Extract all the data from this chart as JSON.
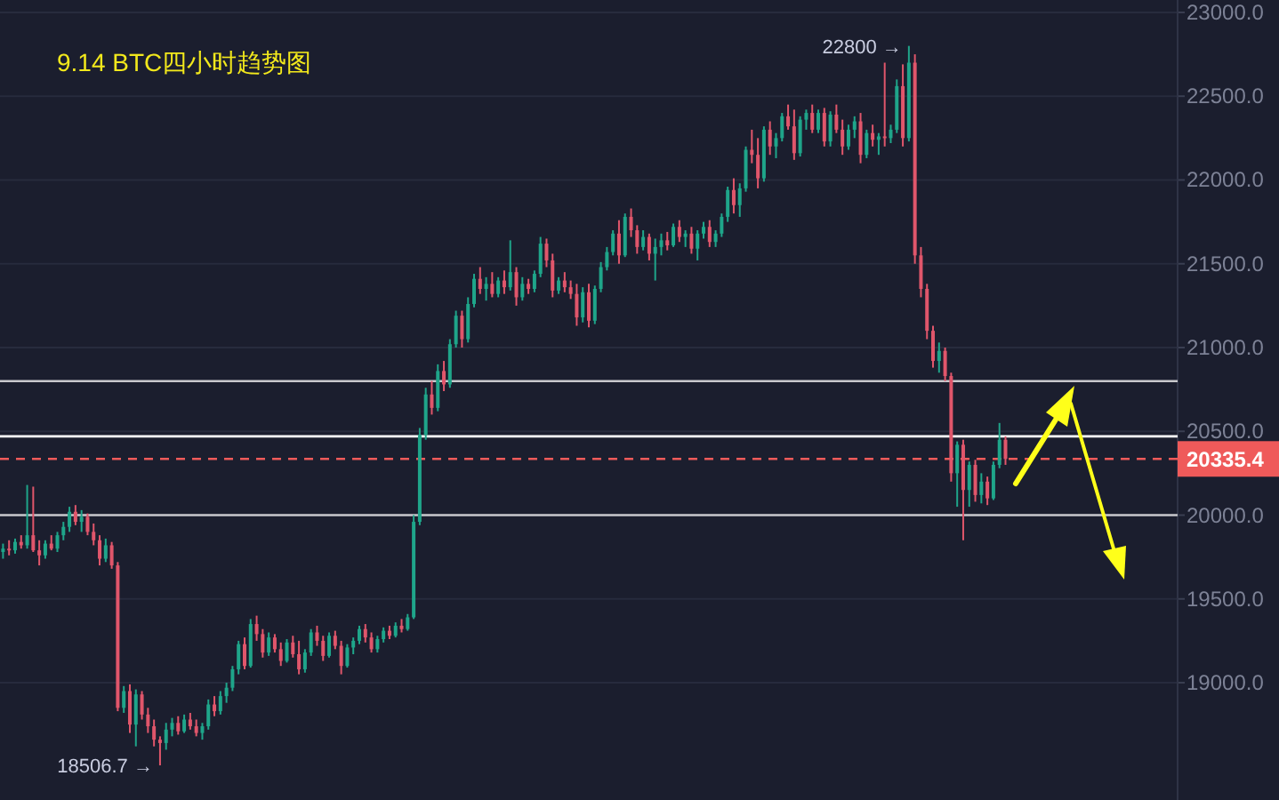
{
  "chart_data": {
    "type": "candlestick",
    "title": "9.14  BTC四小时趋势图",
    "categories": [
      null,
      null,
      null,
      null,
      null,
      null,
      null,
      null,
      null,
      null,
      null,
      null,
      null,
      null,
      null,
      null,
      null,
      null,
      null,
      null,
      null,
      null,
      null,
      null,
      null,
      null,
      null,
      null,
      null,
      null,
      null,
      null,
      null,
      null,
      null,
      null,
      null,
      null,
      null,
      null,
      null,
      null,
      null,
      null,
      null,
      null,
      null,
      null,
      null,
      null,
      null,
      null,
      null,
      null,
      null,
      null,
      null,
      null,
      null,
      null,
      null,
      null,
      null,
      null,
      null,
      null,
      null,
      null,
      null,
      null,
      null,
      null,
      null,
      null,
      null,
      null,
      null,
      null,
      null,
      null,
      null,
      null,
      null,
      null,
      null,
      null,
      null,
      null,
      null,
      null,
      null,
      null,
      null,
      null,
      null,
      null,
      null,
      null,
      null,
      null,
      null,
      null,
      null,
      null,
      null,
      null,
      null,
      null,
      null,
      null,
      null,
      null,
      null,
      null,
      null,
      null,
      null,
      null,
      null,
      null,
      null,
      null,
      null,
      null,
      null,
      null,
      null,
      null,
      null,
      null,
      null,
      null,
      null,
      null,
      null,
      null,
      null,
      null,
      null,
      null,
      null,
      null,
      null,
      null,
      null,
      null,
      null,
      null,
      null,
      null,
      null,
      null,
      null,
      null,
      null,
      null,
      null,
      null,
      null,
      null,
      null,
      null,
      null,
      null,
      null,
      null,
      null,
      null,
      null,
      null,
      null,
      null,
      null,
      null,
      null,
      null,
      null,
      null,
      null,
      null,
      null,
      null,
      null,
      null,
      null,
      null,
      null,
      null,
      null,
      null,
      null,
      null,
      null,
      null,
      null
    ],
    "ohlc": [
      [
        19780,
        19830,
        19740,
        19800
      ],
      [
        19800,
        19850,
        19760,
        19790
      ],
      [
        19790,
        19860,
        19770,
        19840
      ],
      [
        19840,
        19880,
        19800,
        19820
      ],
      [
        19820,
        20180,
        19800,
        19880
      ],
      [
        19880,
        20170,
        19780,
        19790
      ],
      [
        19790,
        19850,
        19700,
        19760
      ],
      [
        19760,
        19850,
        19740,
        19830
      ],
      [
        19830,
        19880,
        19790,
        19800
      ],
      [
        19800,
        19900,
        19780,
        19880
      ],
      [
        19880,
        19960,
        19850,
        19930
      ],
      [
        19930,
        20050,
        19900,
        20020
      ],
      [
        20020,
        20060,
        19940,
        19960
      ],
      [
        19960,
        20030,
        19900,
        19990
      ],
      [
        19990,
        20010,
        19880,
        19900
      ],
      [
        19900,
        19950,
        19820,
        19850
      ],
      [
        19850,
        19880,
        19700,
        19740
      ],
      [
        19740,
        19860,
        19720,
        19820
      ],
      [
        19820,
        19840,
        19680,
        19700
      ],
      [
        19700,
        19720,
        18830,
        18850
      ],
      [
        18850,
        18980,
        18820,
        18950
      ],
      [
        18950,
        18990,
        18700,
        18750
      ],
      [
        18750,
        18960,
        18620,
        18930
      ],
      [
        18930,
        18950,
        18780,
        18810
      ],
      [
        18810,
        18850,
        18700,
        18740
      ],
      [
        18740,
        18780,
        18620,
        18660
      ],
      [
        18660,
        18680,
        18506.7,
        18640
      ],
      [
        18640,
        18760,
        18600,
        18720
      ],
      [
        18720,
        18790,
        18680,
        18760
      ],
      [
        18760,
        18800,
        18690,
        18710
      ],
      [
        18710,
        18810,
        18700,
        18780
      ],
      [
        18780,
        18820,
        18720,
        18740
      ],
      [
        18740,
        18780,
        18680,
        18700
      ],
      [
        18700,
        18760,
        18660,
        18740
      ],
      [
        18740,
        18900,
        18720,
        18870
      ],
      [
        18870,
        18920,
        18800,
        18830
      ],
      [
        18830,
        18950,
        18810,
        18920
      ],
      [
        18920,
        19000,
        18880,
        18970
      ],
      [
        18970,
        19100,
        18950,
        19080
      ],
      [
        19080,
        19250,
        19050,
        19230
      ],
      [
        19230,
        19270,
        19080,
        19100
      ],
      [
        19100,
        19380,
        19090,
        19350
      ],
      [
        19350,
        19400,
        19250,
        19290
      ],
      [
        19290,
        19320,
        19150,
        19180
      ],
      [
        19180,
        19300,
        19160,
        19270
      ],
      [
        19270,
        19290,
        19180,
        19200
      ],
      [
        19200,
        19240,
        19100,
        19130
      ],
      [
        19130,
        19260,
        19120,
        19240
      ],
      [
        19240,
        19280,
        19150,
        19170
      ],
      [
        19170,
        19250,
        19050,
        19080
      ],
      [
        19080,
        19200,
        19060,
        19180
      ],
      [
        19180,
        19320,
        19160,
        19300
      ],
      [
        19300,
        19340,
        19220,
        19250
      ],
      [
        19250,
        19280,
        19130,
        19160
      ],
      [
        19160,
        19300,
        19150,
        19280
      ],
      [
        19280,
        19310,
        19200,
        19220
      ],
      [
        19220,
        19250,
        19050,
        19100
      ],
      [
        19100,
        19230,
        19090,
        19210
      ],
      [
        19210,
        19270,
        19170,
        19250
      ],
      [
        19250,
        19340,
        19230,
        19320
      ],
      [
        19320,
        19350,
        19240,
        19270
      ],
      [
        19270,
        19300,
        19180,
        19200
      ],
      [
        19200,
        19280,
        19180,
        19260
      ],
      [
        19260,
        19330,
        19240,
        19310
      ],
      [
        19310,
        19340,
        19260,
        19280
      ],
      [
        19280,
        19360,
        19270,
        19340
      ],
      [
        19340,
        19380,
        19300,
        19320
      ],
      [
        19320,
        19410,
        19310,
        19390
      ],
      [
        19390,
        20000,
        19380,
        19960
      ],
      [
        19960,
        20520,
        19940,
        20480
      ],
      [
        20480,
        20760,
        20450,
        20720
      ],
      [
        20720,
        20800,
        20600,
        20640
      ],
      [
        20640,
        20900,
        20620,
        20860
      ],
      [
        20860,
        20920,
        20740,
        20780
      ],
      [
        20780,
        21050,
        20760,
        21020
      ],
      [
        21020,
        21220,
        21000,
        21190
      ],
      [
        21190,
        21220,
        21000,
        21050
      ],
      [
        21050,
        21300,
        21030,
        21260
      ],
      [
        21260,
        21440,
        21240,
        21410
      ],
      [
        21410,
        21480,
        21320,
        21350
      ],
      [
        21350,
        21420,
        21280,
        21380
      ],
      [
        21380,
        21450,
        21300,
        21320
      ],
      [
        21320,
        21420,
        21300,
        21400
      ],
      [
        21400,
        21460,
        21320,
        21360
      ],
      [
        21360,
        21640,
        21340,
        21450
      ],
      [
        21450,
        21480,
        21250,
        21300
      ],
      [
        21300,
        21420,
        21280,
        21380
      ],
      [
        21380,
        21410,
        21320,
        21350
      ],
      [
        21350,
        21460,
        21330,
        21440
      ],
      [
        21440,
        21660,
        21420,
        21620
      ],
      [
        21620,
        21650,
        21480,
        21520
      ],
      [
        21520,
        21560,
        21300,
        21340
      ],
      [
        21340,
        21420,
        21320,
        21400
      ],
      [
        21400,
        21450,
        21330,
        21360
      ],
      [
        21360,
        21400,
        21290,
        21320
      ],
      [
        21320,
        21380,
        21130,
        21180
      ],
      [
        21180,
        21360,
        21150,
        21330
      ],
      [
        21330,
        21380,
        21120,
        21160
      ],
      [
        21160,
        21370,
        21140,
        21350
      ],
      [
        21350,
        21510,
        21330,
        21480
      ],
      [
        21480,
        21600,
        21460,
        21570
      ],
      [
        21570,
        21700,
        21550,
        21680
      ],
      [
        21680,
        21760,
        21500,
        21550
      ],
      [
        21550,
        21800,
        21540,
        21780
      ],
      [
        21780,
        21830,
        21660,
        21700
      ],
      [
        21700,
        21730,
        21560,
        21600
      ],
      [
        21600,
        21700,
        21580,
        21660
      ],
      [
        21660,
        21680,
        21520,
        21560
      ],
      [
        21560,
        21650,
        21400,
        21600
      ],
      [
        21600,
        21680,
        21550,
        21640
      ],
      [
        21640,
        21690,
        21580,
        21610
      ],
      [
        21610,
        21740,
        21600,
        21720
      ],
      [
        21720,
        21760,
        21630,
        21660
      ],
      [
        21660,
        21700,
        21600,
        21680
      ],
      [
        21680,
        21720,
        21560,
        21590
      ],
      [
        21590,
        21700,
        21520,
        21680
      ],
      [
        21680,
        21750,
        21650,
        21720
      ],
      [
        21720,
        21760,
        21600,
        21630
      ],
      [
        21630,
        21700,
        21600,
        21680
      ],
      [
        21680,
        21800,
        21660,
        21780
      ],
      [
        21780,
        21960,
        21750,
        21940
      ],
      [
        21940,
        22010,
        21800,
        21850
      ],
      [
        21850,
        21980,
        21780,
        21950
      ],
      [
        21950,
        22200,
        21930,
        22180
      ],
      [
        22180,
        22300,
        22100,
        22150
      ],
      [
        22150,
        22250,
        21950,
        22010
      ],
      [
        22010,
        22320,
        21990,
        22300
      ],
      [
        22300,
        22350,
        22150,
        22200
      ],
      [
        22200,
        22280,
        22130,
        22250
      ],
      [
        22250,
        22400,
        22230,
        22380
      ],
      [
        22380,
        22450,
        22300,
        22320
      ],
      [
        22320,
        22420,
        22120,
        22160
      ],
      [
        22160,
        22380,
        22140,
        22360
      ],
      [
        22360,
        22420,
        22300,
        22400
      ],
      [
        22400,
        22450,
        22280,
        22300
      ],
      [
        22300,
        22420,
        22280,
        22400
      ],
      [
        22400,
        22430,
        22200,
        22230
      ],
      [
        22230,
        22410,
        22200,
        22390
      ],
      [
        22390,
        22450,
        22280,
        22300
      ],
      [
        22300,
        22360,
        22150,
        22200
      ],
      [
        22200,
        22330,
        22180,
        22300
      ],
      [
        22300,
        22380,
        22250,
        22350
      ],
      [
        22350,
        22400,
        22100,
        22150
      ],
      [
        22150,
        22300,
        22130,
        22280
      ],
      [
        22280,
        22330,
        22200,
        22240
      ],
      [
        22240,
        22280,
        22150,
        22260
      ],
      [
        22260,
        22700,
        22200,
        22250
      ],
      [
        22250,
        22330,
        22220,
        22300
      ],
      [
        22300,
        22600,
        22280,
        22560
      ],
      [
        22560,
        22690,
        22200,
        22250
      ],
      [
        22250,
        22800,
        22230,
        22700
      ],
      [
        22700,
        22750,
        21500,
        21550
      ],
      [
        21550,
        21600,
        21300,
        21350
      ],
      [
        21350,
        21380,
        21050,
        21100
      ],
      [
        21100,
        21130,
        20880,
        20920
      ],
      [
        20920,
        21030,
        20850,
        20980
      ],
      [
        20980,
        21000,
        20800,
        20830
      ],
      [
        20830,
        20850,
        20200,
        20250
      ],
      [
        20250,
        20440,
        20050,
        20420
      ],
      [
        20420,
        20450,
        19850,
        20150
      ],
      [
        20150,
        20320,
        20050,
        20300
      ],
      [
        20300,
        20330,
        20080,
        20120
      ],
      [
        20120,
        20250,
        20070,
        20200
      ],
      [
        20200,
        20230,
        20060,
        20100
      ],
      [
        20100,
        20320,
        20090,
        20300
      ],
      [
        20300,
        20550,
        20280,
        20450
      ],
      [
        20450,
        20470,
        20300,
        20335.4
      ],
      null,
      null,
      null,
      null,
      null,
      null,
      null,
      null,
      null,
      null,
      null,
      null,
      null,
      null,
      null,
      null,
      null,
      null,
      null,
      null,
      null,
      null,
      null,
      null,
      null,
      null,
      null,
      null
    ],
    "ylim": [
      18300,
      23074
    ],
    "yticks": [
      {
        "value": 19000,
        "label": "19000.0"
      },
      {
        "value": 19500,
        "label": "19500.0"
      },
      {
        "value": 20000,
        "label": "20000.0"
      },
      {
        "value": 20500,
        "label": "20500.0"
      },
      {
        "value": 21000,
        "label": "21000.0"
      },
      {
        "value": 21500,
        "label": "21500.0"
      },
      {
        "value": 22000,
        "label": "22000.0"
      },
      {
        "value": 22500,
        "label": "22500.0"
      },
      {
        "value": 23000,
        "label": "23000.0"
      }
    ],
    "grid": "y",
    "tick_labels": "y",
    "ref_lines": [
      {
        "axis": "y",
        "value": 20000,
        "color": "#c8c8cc"
      },
      {
        "axis": "y",
        "value": 20800,
        "color": "#c8c8cc"
      },
      {
        "axis": "y",
        "value": 20470,
        "color": "#ffffff"
      },
      {
        "axis": "y",
        "value": 20335.4,
        "label": "20335.4",
        "color": "#ef5a5a",
        "line_style": "dashed"
      }
    ],
    "annotations": [
      "22800 →",
      "18506.7 →"
    ]
  }
}
